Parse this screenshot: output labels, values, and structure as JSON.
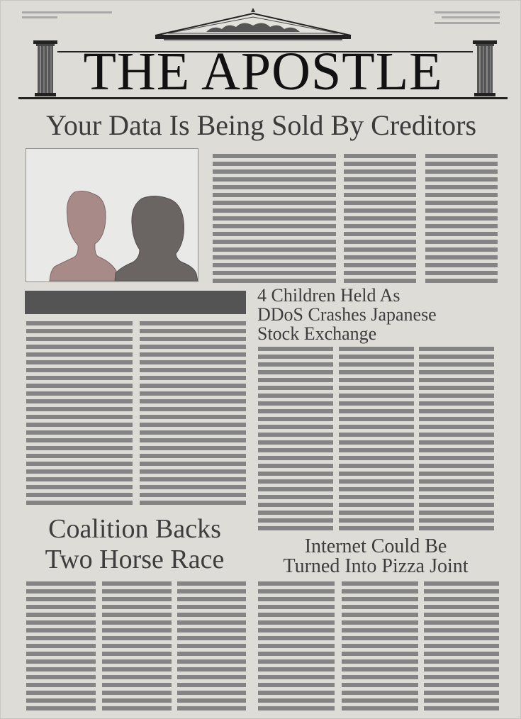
{
  "masthead": {
    "title": "THE APOSTLE"
  },
  "main_story": {
    "headline": "Your Data Is Being Sold By Creditors"
  },
  "stories": [
    {
      "lines": [
        "4 Children Held As",
        "DDoS Crashes Japanese",
        "Stock Exchange"
      ]
    },
    {
      "lines": [
        "Coalition Backs",
        "Two Horse Race"
      ]
    },
    {
      "lines": [
        "Internet Could Be",
        "Turned Into Pizza Joint"
      ]
    }
  ],
  "colors": {
    "paper": "#dedcd7",
    "text_placeholder_lines": "#848484",
    "dark_bar": "#545454",
    "silhouette_left": "#a88a88",
    "silhouette_right": "#6a6463"
  },
  "icons": [
    "temple-pediment-icon",
    "column-left-icon",
    "column-right-icon",
    "silhouette-icon"
  ]
}
